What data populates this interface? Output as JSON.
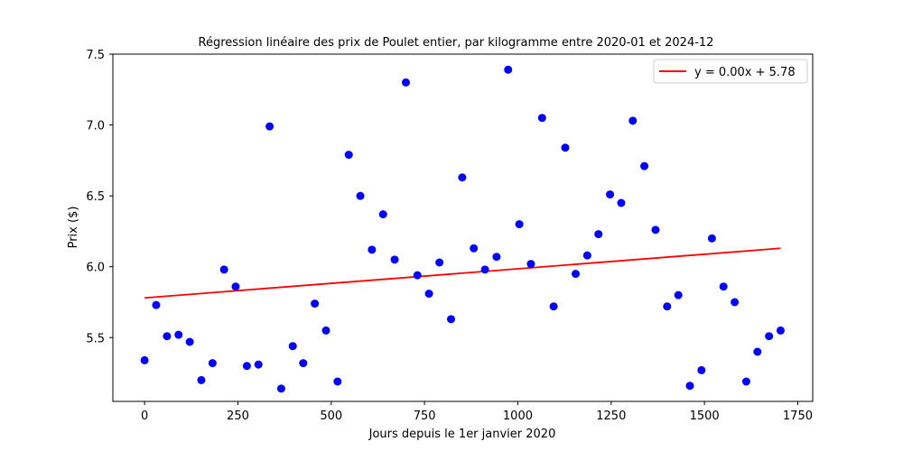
{
  "chart_data": {
    "type": "scatter",
    "title": "Régression linéaire des prix de Poulet entier, par kilogramme entre 2020-01 et 2024-12",
    "xlabel": "Jours depuis le 1er janvier 2020",
    "ylabel": "Prix ($)",
    "xlim": [
      -85,
      1790
    ],
    "ylim": [
      5.05,
      7.5
    ],
    "xticks": [
      0,
      250,
      500,
      750,
      1000,
      1250,
      1500,
      1750
    ],
    "xtick_labels": [
      "0",
      "250",
      "500",
      "750",
      "1000",
      "1250",
      "1500",
      "1750"
    ],
    "yticks": [
      5.5,
      6.0,
      6.5,
      7.0,
      7.5
    ],
    "ytick_labels": [
      "5.5",
      "6.0",
      "6.5",
      "7.0",
      "7.5"
    ],
    "grid": false,
    "legend_position": "top-right",
    "series": [
      {
        "type": "scatter",
        "color": "#0000ff",
        "x": [
          0,
          31,
          60,
          91,
          121,
          152,
          182,
          213,
          244,
          274,
          305,
          335,
          366,
          397,
          425,
          456,
          486,
          517,
          547,
          578,
          609,
          639,
          670,
          700,
          731,
          762,
          790,
          821,
          851,
          882,
          912,
          943,
          974,
          1004,
          1035,
          1065,
          1096,
          1127,
          1155,
          1186,
          1216,
          1247,
          1277,
          1308,
          1339,
          1369,
          1400,
          1430,
          1461,
          1492,
          1520,
          1551,
          1581,
          1612,
          1642,
          1673,
          1704
        ],
        "y": [
          5.34,
          5.73,
          5.51,
          5.52,
          5.47,
          5.2,
          5.32,
          5.98,
          5.86,
          5.3,
          5.31,
          6.99,
          5.14,
          5.44,
          5.32,
          5.74,
          5.55,
          5.19,
          6.79,
          6.5,
          6.12,
          6.37,
          6.05,
          7.3,
          5.94,
          5.81,
          6.03,
          5.63,
          6.63,
          6.13,
          5.98,
          6.07,
          7.39,
          6.3,
          6.02,
          7.05,
          5.72,
          6.84,
          5.95,
          6.08,
          6.23,
          6.51,
          6.45,
          7.03,
          6.71,
          6.26,
          5.72,
          5.8,
          5.16,
          5.27,
          6.2,
          5.86,
          5.75,
          5.19,
          5.4,
          5.51,
          5.55
        ]
      },
      {
        "type": "line",
        "name": "y = 0.00x + 5.78",
        "color": "#ff0000",
        "x": [
          0,
          1704
        ],
        "y": [
          5.78,
          6.13
        ]
      }
    ]
  }
}
